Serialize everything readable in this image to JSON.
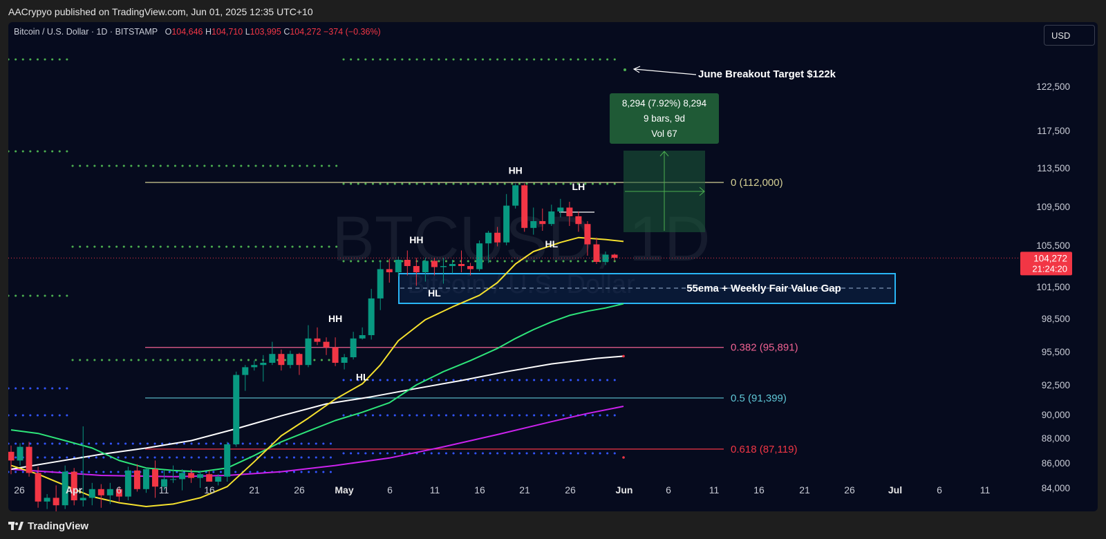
{
  "header": {
    "publisher_line": "AACrypyo published on TradingView.com, Jun 01, 2025 12:35 UTC+10"
  },
  "legend": {
    "symbol": "Bitcoin / U.S. Dollar · 1D · BITSTAMP",
    "o_label": "O",
    "o_value": "104,646",
    "h_label": "H",
    "h_value": "104,710",
    "l_label": "L",
    "l_value": "103,995",
    "c_label": "C",
    "c_value": "104,272",
    "change": "−374 (−0.36%)"
  },
  "currency": "USD",
  "watermark": {
    "main": "BTCUSD, 1D",
    "sub": "Bitcoin / U.S. Dollar"
  },
  "footer": {
    "brand": "TradingView"
  },
  "colors": {
    "background": "#060b1e",
    "up": "#089981",
    "down": "#f23645",
    "ema_short": "#f5e12e",
    "ema_55": "#2ee57a",
    "ema_long": "#ffffff",
    "ema_200": "#cc22ee",
    "dots_green": "#4caf50",
    "dots_blue": "#3355ff",
    "fvg_box": "#29b6f6"
  },
  "chart_data": {
    "type": "candlestick",
    "price_axis_ticks": [
      "122,500",
      "117,500",
      "113,500",
      "109,500",
      "105,500",
      "101,500",
      "98,500",
      "95,500",
      "92,500",
      "90,000",
      "88,000",
      "86,000",
      "84,000"
    ],
    "time_axis_ticks": [
      "26",
      "Apr",
      "6",
      "11",
      "16",
      "21",
      "26",
      "May",
      "6",
      "11",
      "16",
      "21",
      "26",
      "Jun",
      "6",
      "11",
      "16",
      "21",
      "26",
      "Jul",
      "6",
      "11"
    ],
    "last_price": {
      "value": "104,272",
      "countdown": "21:24:20"
    },
    "candles": [
      [
        86900,
        87400,
        85100,
        86200
      ],
      [
        86200,
        87600,
        85800,
        87300
      ],
      [
        87300,
        87700,
        84900,
        85200
      ],
      [
        85200,
        85700,
        82400,
        82900
      ],
      [
        82900,
        83500,
        82300,
        83200
      ],
      [
        83200,
        84200,
        82000,
        82600
      ],
      [
        82600,
        85800,
        82300,
        85300
      ],
      [
        85300,
        85600,
        82600,
        83000
      ],
      [
        83000,
        89000,
        82500,
        83200
      ],
      [
        83200,
        84400,
        82600,
        83900
      ],
      [
        83900,
        84300,
        82400,
        83400
      ],
      [
        83400,
        84400,
        82700,
        83900
      ],
      [
        83900,
        84100,
        82900,
        83300
      ],
      [
        83300,
        85700,
        83000,
        85400
      ],
      [
        85400,
        85900,
        83700,
        83900
      ],
      [
        83900,
        85600,
        83600,
        85500
      ],
      [
        85500,
        86200,
        83200,
        84100
      ],
      [
        84100,
        85400,
        83800,
        84700
      ],
      [
        84700,
        85800,
        84400,
        84700
      ],
      [
        84700,
        85500,
        83800,
        85200
      ],
      [
        85200,
        85500,
        84400,
        84800
      ],
      [
        84800,
        85400,
        84000,
        85100
      ],
      [
        85100,
        85400,
        84500,
        84500
      ],
      [
        84500,
        85100,
        84200,
        84900
      ],
      [
        84900,
        87700,
        84500,
        87500
      ],
      [
        87500,
        93700,
        87300,
        93400
      ],
      [
        93400,
        94300,
        92000,
        94100
      ],
      [
        94100,
        94700,
        93800,
        94300
      ],
      [
        94300,
        95200,
        92800,
        94500
      ],
      [
        94500,
        96400,
        94300,
        95300
      ],
      [
        95300,
        95700,
        93800,
        94300
      ],
      [
        94300,
        95600,
        94000,
        95300
      ],
      [
        95300,
        95400,
        93400,
        94300
      ],
      [
        94300,
        97900,
        94100,
        96700
      ],
      [
        96700,
        97700,
        96100,
        96400
      ],
      [
        96400,
        96800,
        95200,
        95900
      ],
      [
        95900,
        96800,
        94200,
        94500
      ],
      [
        94500,
        95300,
        93900,
        95000
      ],
      [
        95000,
        97300,
        94800,
        96700
      ],
      [
        96700,
        97700,
        96600,
        97000
      ],
      [
        97000,
        101300,
        96600,
        100400
      ],
      [
        100400,
        104000,
        99300,
        103200
      ],
      [
        103200,
        104200,
        101900,
        102900
      ],
      [
        102900,
        104400,
        102500,
        104100
      ],
      [
        104100,
        105000,
        102600,
        103500
      ],
      [
        103500,
        104300,
        101600,
        102900
      ],
      [
        102900,
        104300,
        102000,
        104000
      ],
      [
        104000,
        104300,
        102600,
        103400
      ],
      [
        103400,
        104300,
        101800,
        103500
      ],
      [
        103500,
        104100,
        102800,
        103700
      ],
      [
        103700,
        105000,
        102900,
        103500
      ],
      [
        103500,
        103800,
        102600,
        103200
      ],
      [
        103200,
        106000,
        103000,
        105700
      ],
      [
        105700,
        107000,
        103800,
        106800
      ],
      [
        106800,
        107400,
        105400,
        105800
      ],
      [
        105800,
        110800,
        105500,
        109600
      ],
      [
        109600,
        111900,
        109300,
        111700
      ],
      [
        111700,
        111900,
        106900,
        107300
      ],
      [
        107300,
        109400,
        106600,
        108000
      ],
      [
        108000,
        109300,
        107000,
        107700
      ],
      [
        107700,
        109700,
        107500,
        109000
      ],
      [
        109000,
        110300,
        108400,
        109400
      ],
      [
        109400,
        110000,
        107500,
        108500
      ],
      [
        108500,
        109000,
        106900,
        107700
      ],
      [
        107700,
        108000,
        104500,
        105600
      ],
      [
        105600,
        106300,
        103700,
        103900
      ],
      [
        103900,
        104900,
        103600,
        104600
      ],
      [
        104600,
        104700,
        104000,
        104300
      ]
    ],
    "fib_levels": [
      {
        "label": "0 (112,000)",
        "value": 112000,
        "color": "#d4cf94"
      },
      {
        "label": "0.382 (95,891)",
        "value": 95891,
        "color": "#f06292"
      },
      {
        "label": "0.5 (91,399)",
        "value": 91399,
        "color": "#5fc7d6"
      },
      {
        "label": "0.618 (87,119)",
        "value": 87119,
        "color": "#f23645"
      }
    ],
    "structure_labels": [
      {
        "text": "HH",
        "bar": 36,
        "price": 98200
      },
      {
        "text": "HL",
        "bar": 39,
        "price": 92900
      },
      {
        "text": "HH",
        "bar": 45,
        "price": 105700
      },
      {
        "text": "HL",
        "bar": 47,
        "price": 100600
      },
      {
        "text": "HH",
        "bar": 56,
        "price": 112900
      },
      {
        "text": "HL",
        "bar": 60,
        "price": 105300
      },
      {
        "text": "LH",
        "bar": 63,
        "price": 111200
      }
    ],
    "annotations": {
      "breakout_target": "June Breakout Target $122k",
      "fvg_label": "55ema + Weekly Fair Value Gap",
      "measure_line1": "8,294 (7.92%) 8,294",
      "measure_line2": "9 bars, 9d",
      "measure_line3": "Vol 67"
    },
    "ema_short": [
      [
        0,
        85800
      ],
      [
        3,
        85100
      ],
      [
        6,
        84200
      ],
      [
        9,
        83300
      ],
      [
        12,
        82800
      ],
      [
        15,
        82500
      ],
      [
        18,
        82700
      ],
      [
        21,
        83200
      ],
      [
        24,
        84100
      ],
      [
        27,
        86100
      ],
      [
        30,
        88200
      ],
      [
        33,
        89700
      ],
      [
        36,
        91300
      ],
      [
        39,
        92600
      ],
      [
        41,
        94300
      ],
      [
        43,
        96500
      ],
      [
        46,
        98400
      ],
      [
        49,
        99600
      ],
      [
        52,
        100700
      ],
      [
        54,
        101900
      ],
      [
        56,
        103700
      ],
      [
        58,
        104900
      ],
      [
        61,
        105800
      ],
      [
        63,
        106300
      ],
      [
        66,
        106100
      ],
      [
        68,
        105900
      ]
    ],
    "ema_55": [
      [
        0,
        88700
      ],
      [
        3,
        88400
      ],
      [
        6,
        87800
      ],
      [
        9,
        87200
      ],
      [
        12,
        86200
      ],
      [
        15,
        85600
      ],
      [
        18,
        85400
      ],
      [
        21,
        85300
      ],
      [
        24,
        85600
      ],
      [
        27,
        86600
      ],
      [
        30,
        87700
      ],
      [
        33,
        88600
      ],
      [
        36,
        89500
      ],
      [
        39,
        90200
      ],
      [
        42,
        91000
      ],
      [
        45,
        92500
      ],
      [
        48,
        93700
      ],
      [
        51,
        94700
      ],
      [
        54,
        95800
      ],
      [
        56,
        96700
      ],
      [
        58,
        97500
      ],
      [
        60,
        98200
      ],
      [
        62,
        98800
      ],
      [
        64,
        99200
      ],
      [
        66,
        99500
      ],
      [
        68,
        99900
      ]
    ],
    "ema_long": [
      [
        0,
        85500
      ],
      [
        5,
        86100
      ],
      [
        10,
        86700
      ],
      [
        15,
        87200
      ],
      [
        20,
        87800
      ],
      [
        25,
        88800
      ],
      [
        30,
        89900
      ],
      [
        35,
        90900
      ],
      [
        40,
        91500
      ],
      [
        45,
        92200
      ],
      [
        50,
        92900
      ],
      [
        55,
        93700
      ],
      [
        60,
        94400
      ],
      [
        65,
        94900
      ],
      [
        68,
        95100
      ]
    ],
    "ema_200": [
      [
        0,
        85500
      ],
      [
        10,
        85000
      ],
      [
        18,
        84900
      ],
      [
        24,
        85000
      ],
      [
        30,
        85300
      ],
      [
        36,
        85800
      ],
      [
        42,
        86400
      ],
      [
        48,
        87300
      ],
      [
        54,
        88300
      ],
      [
        60,
        89400
      ],
      [
        64,
        90100
      ],
      [
        68,
        90700
      ]
    ]
  }
}
